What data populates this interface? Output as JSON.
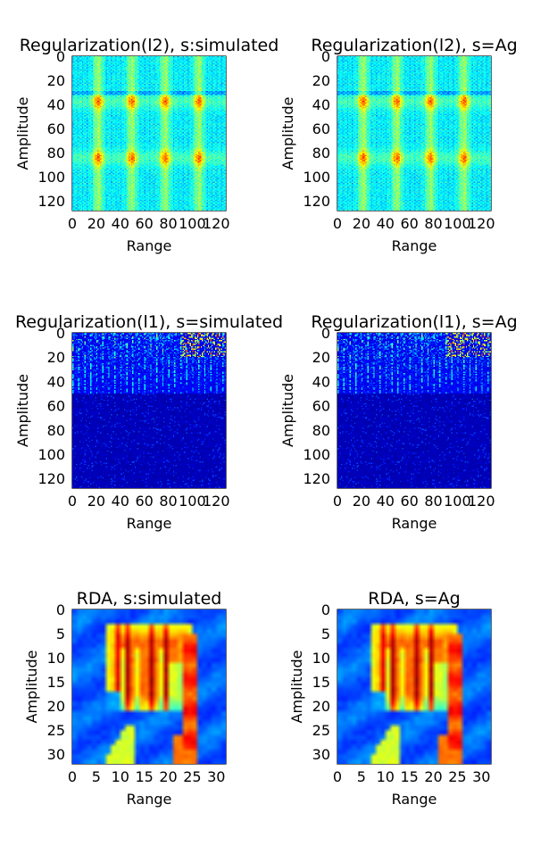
{
  "chart_data": [
    {
      "type": "heatmap",
      "title": "Regularization(l2), s:simulated",
      "xlabel": "Range",
      "ylabel": "Amplitude",
      "xlim": [
        0,
        128
      ],
      "ylim": [
        128,
        0
      ],
      "xticks": [
        "0",
        "20",
        "40",
        "60",
        "80",
        "100",
        "120"
      ],
      "yticks": [
        "0",
        "20",
        "40",
        "60",
        "80",
        "100",
        "120"
      ],
      "grid_size": 128,
      "pattern": "l2",
      "colormap": "jet"
    },
    {
      "type": "heatmap",
      "title": "Regularization(l2), s=Ag",
      "xlabel": "Range",
      "ylabel": "Amplitude",
      "xlim": [
        0,
        128
      ],
      "ylim": [
        128,
        0
      ],
      "xticks": [
        "0",
        "20",
        "40",
        "60",
        "80",
        "100",
        "120"
      ],
      "yticks": [
        "0",
        "20",
        "40",
        "60",
        "80",
        "100",
        "120"
      ],
      "grid_size": 128,
      "pattern": "l2",
      "colormap": "jet"
    },
    {
      "type": "heatmap",
      "title": "Regularization(l1), s=simulated",
      "xlabel": "Range",
      "ylabel": "Amplitude",
      "xlim": [
        0,
        128
      ],
      "ylim": [
        128,
        0
      ],
      "xticks": [
        "0",
        "20",
        "40",
        "60",
        "80",
        "100",
        "120"
      ],
      "yticks": [
        "0",
        "20",
        "40",
        "60",
        "80",
        "100",
        "120"
      ],
      "grid_size": 128,
      "pattern": "l1",
      "colormap": "jet"
    },
    {
      "type": "heatmap",
      "title": "Regularization(l1), s=Ag",
      "xlabel": "Range",
      "ylabel": "Amplitude",
      "xlim": [
        0,
        128
      ],
      "ylim": [
        128,
        0
      ],
      "xticks": [
        "0",
        "20",
        "40",
        "60",
        "80",
        "100",
        "120"
      ],
      "yticks": [
        "0",
        "20",
        "40",
        "60",
        "80",
        "100",
        "120"
      ],
      "grid_size": 128,
      "pattern": "l1",
      "colormap": "jet"
    },
    {
      "type": "heatmap",
      "title": "RDA, s:simulated",
      "xlabel": "Range",
      "ylabel": "Amplitude",
      "xlim": [
        0,
        32
      ],
      "ylim": [
        32,
        0
      ],
      "xticks": [
        "0",
        "5",
        "10",
        "15",
        "20",
        "25",
        "30"
      ],
      "yticks": [
        "0",
        "5",
        "10",
        "15",
        "20",
        "25",
        "30"
      ],
      "grid_size": 32,
      "pattern": "rda",
      "colormap": "jet"
    },
    {
      "type": "heatmap",
      "title": "RDA, s=Ag",
      "xlabel": "Range",
      "ylabel": "Amplitude",
      "xlim": [
        0,
        32
      ],
      "ylim": [
        32,
        0
      ],
      "xticks": [
        "0",
        "5",
        "10",
        "15",
        "20",
        "25",
        "30"
      ],
      "yticks": [
        "0",
        "5",
        "10",
        "15",
        "20",
        "25",
        "30"
      ],
      "grid_size": 32,
      "pattern": "rda",
      "colormap": "jet"
    }
  ]
}
